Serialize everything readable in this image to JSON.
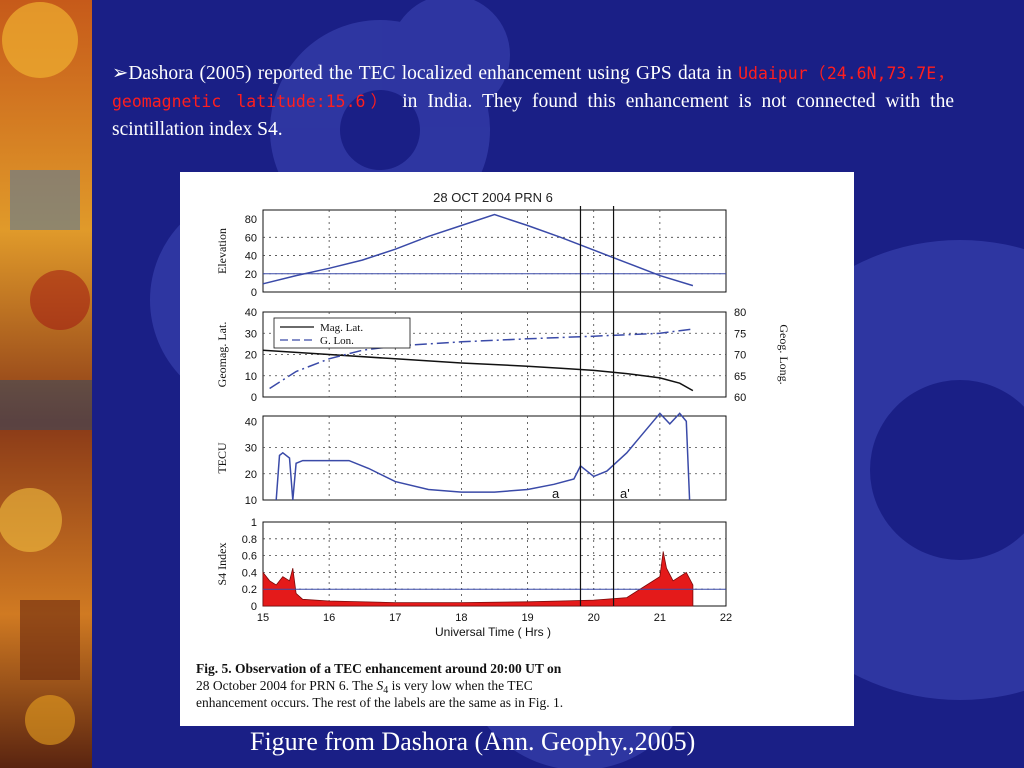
{
  "slide": {
    "bullet_prefix": "Dashora (2005) reported the TEC localized enhancement using GPS data in",
    "location_highlight": "Udaipur（24.6N,73.7E，geomagnetic latitude:15.6）",
    "bullet_suffix": "in India. They found this enhancement is not connected with the scintillation index S4.",
    "figure_caption": "Figure from Dashora (Ann. Geophy.,2005)",
    "colors": {
      "background": "#1a1f86",
      "text": "#ffffff",
      "highlight": "#ff1e1e",
      "gear": "#3f48b8"
    }
  },
  "figure": {
    "title": "28 OCT 2004  PRN  6",
    "xlabel": "Universal Time ( Hrs )",
    "x_ticks": [
      "15",
      "16",
      "17",
      "18",
      "19",
      "20",
      "21",
      "22"
    ],
    "marker_a": "a",
    "marker_a_prime": "a'",
    "note_line1": "Fig. 5.  Observation of a TEC enhancement around 20:00 UT on",
    "note_line2_pre": "28 October 2004 for PRN 6.  The ",
    "note_s4": "S",
    "note_s4_sub": "4",
    "note_line2_post": " is very low when the TEC",
    "note_line3": "enhancement occurs. The rest of the labels are the same as in Fig. 1.",
    "panels": {
      "elevation": {
        "ylabel": "Elevation",
        "ticks": [
          "0",
          "20",
          "40",
          "60",
          "80"
        ]
      },
      "lat": {
        "ylabel": "Geomag. Lat.",
        "ticks": [
          "0",
          "10",
          "20",
          "30",
          "40"
        ],
        "right_label": "Geog. Long.",
        "right_ticks": [
          "60",
          "65",
          "70",
          "75",
          "80"
        ],
        "legend": [
          "Mag. Lat.",
          "G. Lon."
        ]
      },
      "tec": {
        "ylabel": "TECU",
        "ticks": [
          "10",
          "20",
          "30",
          "40"
        ]
      },
      "s4": {
        "ylabel": "S4 Index",
        "ticks": [
          "0",
          "0.2",
          "0.4",
          "0.6",
          "0.8",
          "1"
        ]
      }
    }
  },
  "chart_data": [
    {
      "type": "line",
      "title": "28 OCT 2004  PRN  6",
      "ylabel": "Elevation",
      "xlim": [
        15,
        22
      ],
      "ylim": [
        0,
        90
      ],
      "series": [
        {
          "x": [
            15,
            15.5,
            16,
            16.5,
            17,
            17.5,
            18,
            18.5,
            19,
            19.5,
            20,
            20.5,
            21,
            21.5
          ],
          "y": [
            9,
            18,
            26,
            35,
            47,
            61,
            73,
            85,
            73,
            60,
            46,
            32,
            18,
            7
          ]
        }
      ],
      "reference_line": 20
    },
    {
      "type": "line",
      "ylabel": "Geomag. Lat.",
      "xlim": [
        15,
        22
      ],
      "ylim": [
        0,
        40
      ],
      "y2label": "Geog. Long.",
      "y2lim": [
        60,
        80
      ],
      "series": [
        {
          "name": "Mag. Lat.",
          "x": [
            15,
            16,
            17,
            18,
            19,
            19.5,
            20,
            20.5,
            21,
            21.3,
            21.5
          ],
          "y": [
            22,
            20,
            18,
            16,
            14.5,
            13.5,
            12.5,
            11,
            9,
            6.5,
            3
          ]
        },
        {
          "name": "G. Lon.",
          "x": [
            15.1,
            15.5,
            16,
            16.5,
            17,
            17.5,
            18,
            19,
            20,
            21,
            21.5
          ],
          "y": [
            62,
            66,
            69,
            71,
            72,
            72.5,
            73,
            73.7,
            74.3,
            75,
            76
          ]
        }
      ]
    },
    {
      "type": "line",
      "ylabel": "TECU",
      "xlim": [
        15,
        22
      ],
      "ylim": [
        10,
        42
      ],
      "series": [
        {
          "x": [
            15.2,
            15.25,
            15.3,
            15.4,
            15.45,
            15.5,
            15.6,
            16,
            16.3,
            16.6,
            17,
            17.5,
            18,
            18.5,
            19,
            19.4,
            19.7,
            19.8,
            20,
            20.2,
            20.5,
            20.9,
            21,
            21.15,
            21.3,
            21.4,
            21.45
          ],
          "y": [
            10,
            27,
            28,
            26,
            10,
            24,
            25,
            25,
            25,
            22,
            17,
            14,
            13,
            13,
            14,
            16,
            18,
            23,
            19,
            21,
            28,
            40,
            43,
            39,
            43,
            40,
            10
          ]
        }
      ],
      "annotations": [
        {
          "text": "a",
          "x": 19.8
        },
        {
          "text": "a'",
          "x": 20.3
        }
      ]
    },
    {
      "type": "area",
      "ylabel": "S4 Index",
      "xlabel": "Universal Time ( Hrs )",
      "xlim": [
        15,
        22
      ],
      "ylim": [
        0,
        1
      ],
      "series": [
        {
          "x": [
            15,
            15.1,
            15.2,
            15.3,
            15.4,
            15.45,
            15.5,
            15.6,
            16,
            17,
            18,
            19,
            19.5,
            20,
            20.5,
            21,
            21.05,
            21.1,
            21.2,
            21.3,
            21.4,
            21.5
          ],
          "y": [
            0.4,
            0.3,
            0.25,
            0.35,
            0.3,
            0.45,
            0.15,
            0.08,
            0.06,
            0.04,
            0.04,
            0.05,
            0.06,
            0.07,
            0.1,
            0.35,
            0.65,
            0.45,
            0.3,
            0.35,
            0.4,
            0.25
          ]
        }
      ],
      "reference_line": 0.2
    }
  ]
}
